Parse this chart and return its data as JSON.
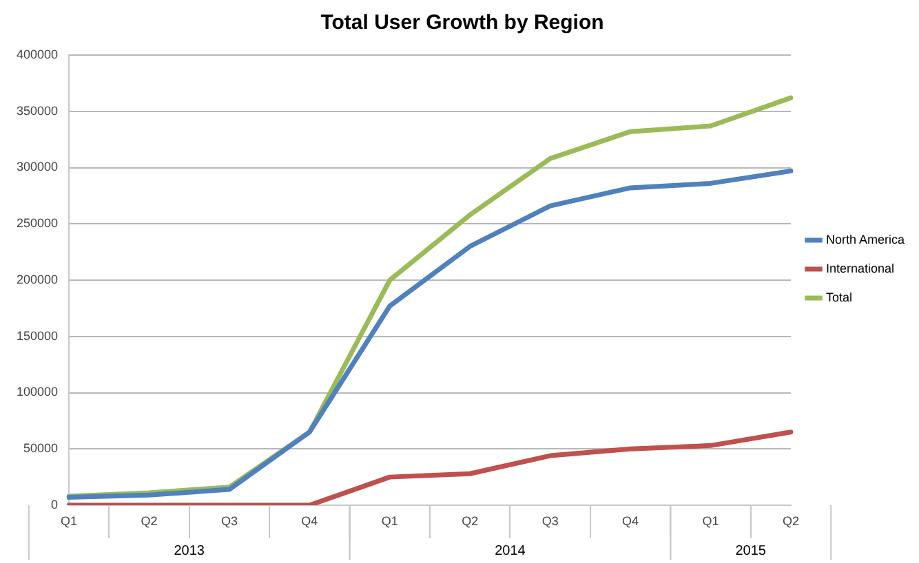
{
  "chart_data": {
    "type": "line",
    "title": "Total User Growth by Region",
    "categories": [
      "Q1",
      "Q2",
      "Q3",
      "Q4",
      "Q1",
      "Q2",
      "Q3",
      "Q4",
      "Q1",
      "Q2"
    ],
    "series": [
      {
        "name": "North America",
        "color": "#4f81bd",
        "values": [
          7000,
          9000,
          14000,
          65000,
          177000,
          230000,
          266000,
          282000,
          286000,
          297000
        ]
      },
      {
        "name": "International",
        "color": "#c0504d",
        "values": [
          0,
          0,
          0,
          0,
          25000,
          28000,
          44000,
          50000,
          53000,
          65000
        ]
      },
      {
        "name": "Total",
        "color": "#9bbb59",
        "values": [
          8000,
          11000,
          16000,
          65000,
          200000,
          258000,
          308000,
          332000,
          337000,
          362000
        ]
      }
    ],
    "ylim": [
      0,
      400000
    ],
    "yticks": [
      0,
      50000,
      100000,
      150000,
      200000,
      250000,
      300000,
      350000,
      400000
    ],
    "grid": "y",
    "legend": "right",
    "marker": "none",
    "line_style": "solid",
    "annotations": [
      "2013",
      "2014",
      "2015"
    ]
  }
}
